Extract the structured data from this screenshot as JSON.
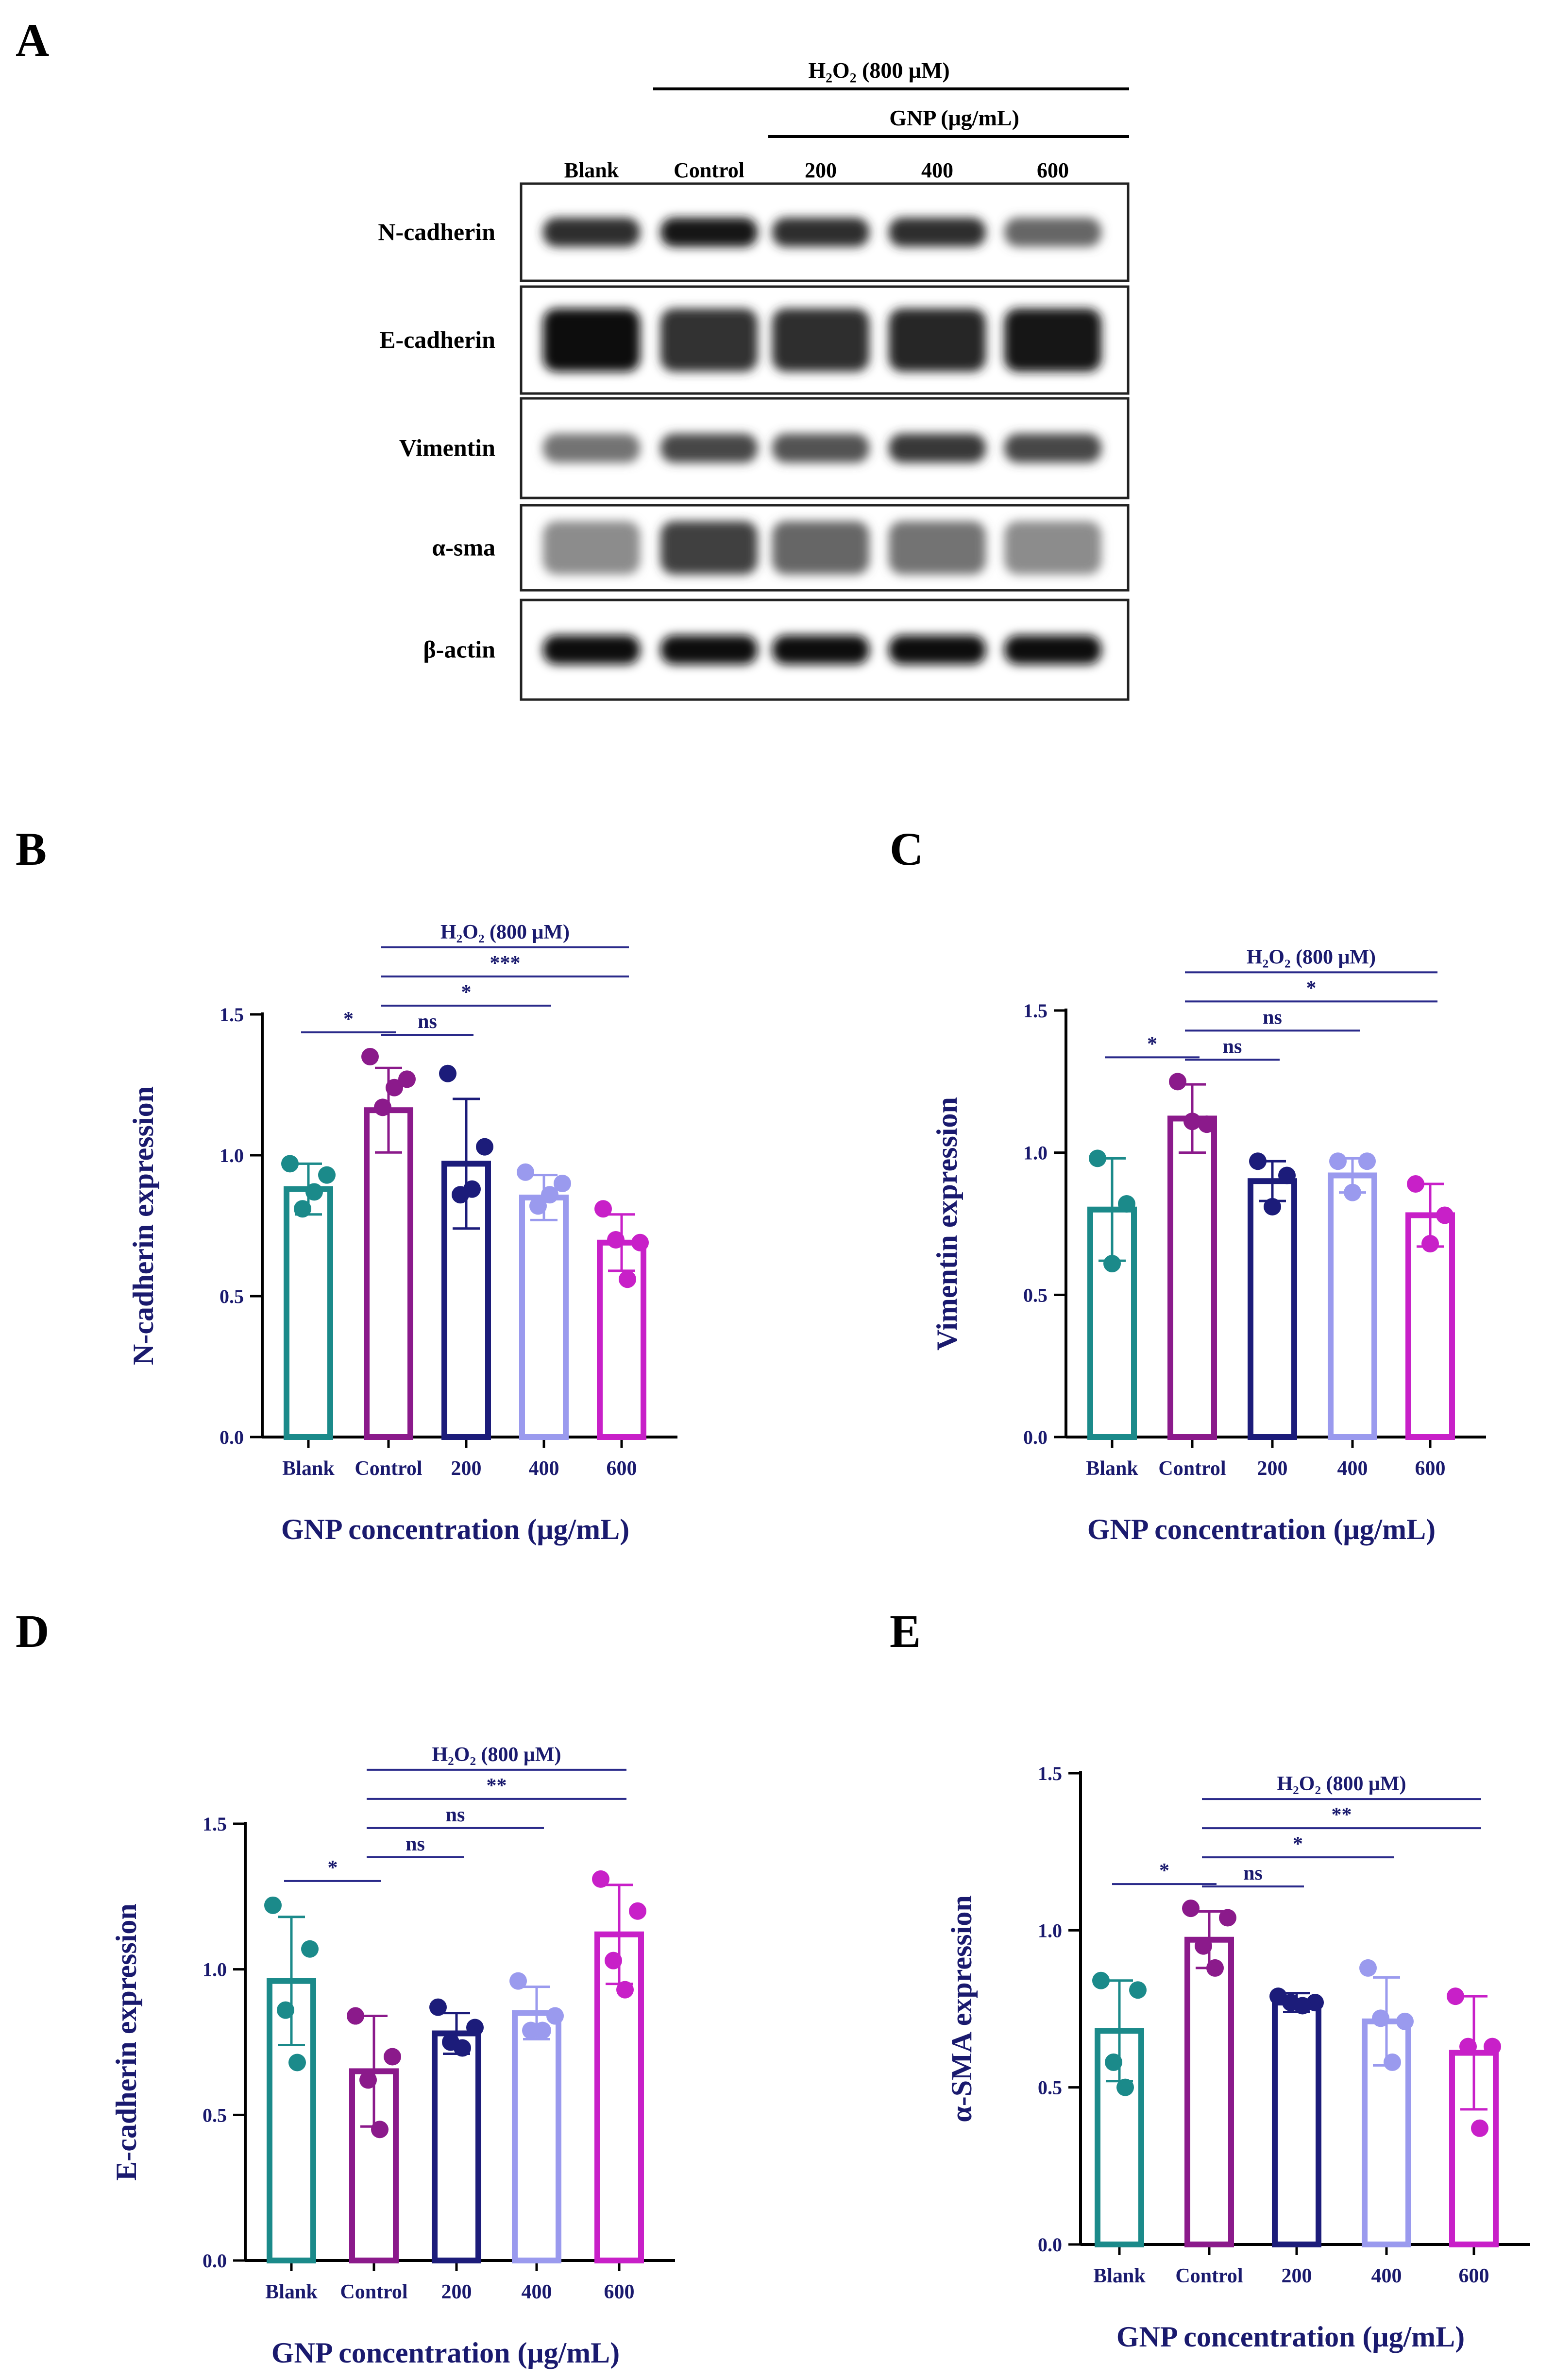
{
  "panel_a": {
    "label": "A",
    "h2o2_label": "H₂O₂ (800 μM)",
    "gnp_label": "GNP (μg/mL)",
    "lane_labels": [
      "Blank",
      "Control",
      "200",
      "400",
      "600"
    ],
    "rows": [
      {
        "label": "N-cadherin",
        "bands": [
          0.82,
          0.9,
          0.82,
          0.82,
          0.6
        ]
      },
      {
        "label": "E-cadherin",
        "bands": [
          0.95,
          0.8,
          0.82,
          0.85,
          0.9
        ]
      },
      {
        "label": "Vimentin",
        "bands": [
          0.55,
          0.72,
          0.68,
          0.78,
          0.72
        ]
      },
      {
        "label": "α-sma",
        "bands": [
          0.45,
          0.75,
          0.6,
          0.55,
          0.45
        ]
      },
      {
        "label": "β-actin",
        "bands": [
          0.95,
          0.95,
          0.95,
          0.95,
          0.95
        ]
      }
    ]
  },
  "chart_data": [
    {
      "panel": "B",
      "type": "bar",
      "categories": [
        "Blank",
        "Control",
        "200",
        "400",
        "600"
      ],
      "colors": [
        "#1b8a8a",
        "#8b1a8b",
        "#1c1c7a",
        "#9a9aee",
        "#c820c8"
      ],
      "values": [
        0.88,
        1.16,
        0.97,
        0.85,
        0.69
      ],
      "sd": [
        0.09,
        0.15,
        0.23,
        0.08,
        0.1
      ],
      "points": [
        [
          0.97,
          0.93,
          0.81,
          0.87
        ],
        [
          1.35,
          1.27,
          1.17,
          1.24
        ],
        [
          1.29,
          1.03,
          0.86,
          0.88
        ],
        [
          0.94,
          0.9,
          0.82,
          0.86
        ],
        [
          0.81,
          0.69,
          0.7,
          0.56
        ]
      ],
      "ylabel": "N-cadherin expression",
      "xlabel": "GNP concentration (μg/mL)",
      "ylim": [
        0,
        1.5
      ],
      "yticks": [
        "0.0",
        "0.5",
        "1.0",
        "1.5"
      ],
      "h2o2_label": "H₂O₂ (800 μM)",
      "comparisons": [
        {
          "from": 0,
          "to": 1,
          "label": "*"
        },
        {
          "from": 1,
          "to": 2,
          "label": "ns"
        },
        {
          "from": 1,
          "to": 3,
          "label": "*"
        },
        {
          "from": 1,
          "to": 4,
          "label": "***"
        }
      ]
    },
    {
      "panel": "C",
      "type": "bar",
      "categories": [
        "Blank",
        "Control",
        "200",
        "400",
        "600"
      ],
      "colors": [
        "#1b8a8a",
        "#8b1a8b",
        "#1c1c7a",
        "#9a9aee",
        "#c820c8"
      ],
      "values": [
        0.8,
        1.12,
        0.9,
        0.92,
        0.78
      ],
      "sd": [
        0.18,
        0.12,
        0.07,
        0.06,
        0.11
      ],
      "points": [
        [
          0.98,
          0.82,
          0.61
        ],
        [
          1.25,
          1.1,
          1.11
        ],
        [
          0.97,
          0.92,
          0.81
        ],
        [
          0.97,
          0.97,
          0.86
        ],
        [
          0.89,
          0.78,
          0.68
        ]
      ],
      "ylabel": "Vimentin expression",
      "xlabel": "GNP concentration (μg/mL)",
      "ylim": [
        0,
        1.5
      ],
      "yticks": [
        "0.0",
        "0.5",
        "1.0",
        "1.5"
      ],
      "h2o2_label": "H₂O₂ (800 μM)",
      "comparisons": [
        {
          "from": 0,
          "to": 1,
          "label": "*"
        },
        {
          "from": 1,
          "to": 2,
          "label": "ns"
        },
        {
          "from": 1,
          "to": 3,
          "label": "ns"
        },
        {
          "from": 1,
          "to": 4,
          "label": "*"
        }
      ]
    },
    {
      "panel": "D",
      "type": "bar",
      "categories": [
        "Blank",
        "Control",
        "200",
        "400",
        "600"
      ],
      "colors": [
        "#1b8a8a",
        "#8b1a8b",
        "#1c1c7a",
        "#9a9aee",
        "#c820c8"
      ],
      "values": [
        0.96,
        0.65,
        0.78,
        0.85,
        1.12
      ],
      "sd": [
        0.22,
        0.19,
        0.07,
        0.09,
        0.17
      ],
      "points": [
        [
          1.22,
          1.07,
          0.86,
          0.68
        ],
        [
          0.84,
          0.7,
          0.62,
          0.45
        ],
        [
          0.87,
          0.8,
          0.75,
          0.73
        ],
        [
          0.96,
          0.84,
          0.79,
          0.79
        ],
        [
          1.31,
          1.2,
          1.03,
          0.93
        ]
      ],
      "ylabel": "E-cadherin expression",
      "xlabel": "GNP concentration (μg/mL)",
      "ylim": [
        0,
        1.5
      ],
      "yticks": [
        "0.0",
        "0.5",
        "1.0",
        "1.5"
      ],
      "h2o2_label": "H₂O₂ (800 μM)",
      "comparisons": [
        {
          "from": 0,
          "to": 1,
          "label": "*"
        },
        {
          "from": 1,
          "to": 2,
          "label": "ns"
        },
        {
          "from": 1,
          "to": 3,
          "label": "ns"
        },
        {
          "from": 1,
          "to": 4,
          "label": "**"
        }
      ]
    },
    {
      "panel": "E",
      "type": "bar",
      "categories": [
        "Blank",
        "Control",
        "200",
        "400",
        "600"
      ],
      "colors": [
        "#1b8a8a",
        "#8b1a8b",
        "#1c1c7a",
        "#9a9aee",
        "#c820c8"
      ],
      "values": [
        0.68,
        0.97,
        0.77,
        0.71,
        0.61
      ],
      "sd": [
        0.16,
        0.09,
        0.03,
        0.14,
        0.18
      ],
      "points": [
        [
          0.84,
          0.81,
          0.58,
          0.5
        ],
        [
          1.07,
          1.04,
          0.95,
          0.88
        ],
        [
          0.79,
          0.77,
          0.77,
          0.76
        ],
        [
          0.88,
          0.71,
          0.72,
          0.58
        ],
        [
          0.79,
          0.63,
          0.63,
          0.37
        ]
      ],
      "ylabel": "α-SMA expression",
      "xlabel": "GNP concentration (μg/mL)",
      "ylim": [
        0,
        1.5
      ],
      "yticks": [
        "0.0",
        "0.5",
        "1.0",
        "1.5"
      ],
      "h2o2_label": "H₂O₂ (800 μM)",
      "comparisons": [
        {
          "from": 0,
          "to": 1,
          "label": "*"
        },
        {
          "from": 1,
          "to": 2,
          "label": "ns"
        },
        {
          "from": 1,
          "to": 3,
          "label": "*"
        },
        {
          "from": 1,
          "to": 4,
          "label": "**"
        }
      ]
    }
  ]
}
